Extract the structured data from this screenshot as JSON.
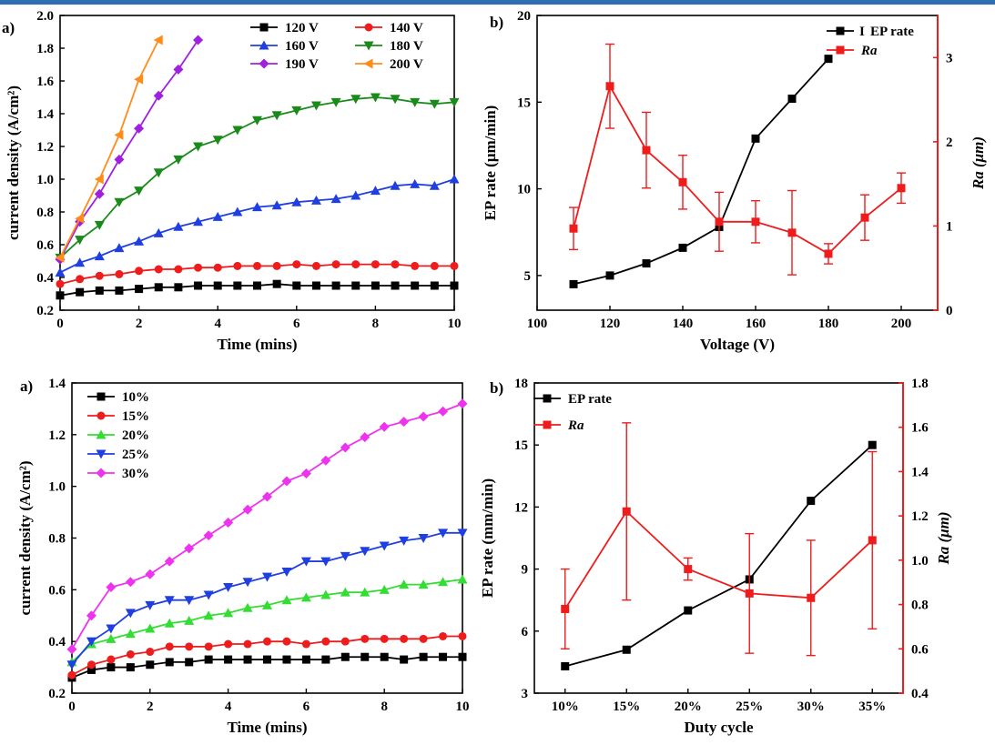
{
  "colors": {
    "black": "#000000",
    "red": "#ee1c1c",
    "blue": "#1f3fe0",
    "green": "#1a8a1a",
    "purple": "#a020e0",
    "orange": "#ff8c1a",
    "limegreen": "#33dd33",
    "magenta": "#ee33ee",
    "topbar": "#2d6fb5"
  },
  "chart_data": [
    {
      "id": "p1",
      "panel_label": "a)",
      "type": "line",
      "xlabel": "Time (mins)",
      "ylabel": "current density (A/cm²)",
      "xlim": [
        0,
        10
      ],
      "ylim": [
        0.2,
        2.0
      ],
      "xticks": [
        0,
        2,
        4,
        6,
        8,
        10
      ],
      "yticks": [
        0.2,
        0.4,
        0.6,
        0.8,
        1.0,
        1.2,
        1.4,
        1.6,
        1.8,
        2.0
      ],
      "ytick_labels": [
        "0.2",
        "0.4",
        "0.6",
        "0.8",
        "1.0",
        "1.2",
        "1.4",
        "1.6",
        "1.8",
        "2.0"
      ],
      "legend_position": "top-right",
      "series": [
        {
          "name": "120 V",
          "color": "#000000",
          "marker": "square",
          "x": [
            0,
            0.5,
            1,
            1.5,
            2,
            2.5,
            3,
            3.5,
            4,
            4.5,
            5,
            5.5,
            6,
            6.5,
            7,
            7.5,
            8,
            8.5,
            9,
            9.5,
            10
          ],
          "y": [
            0.29,
            0.31,
            0.32,
            0.32,
            0.33,
            0.34,
            0.34,
            0.35,
            0.35,
            0.35,
            0.35,
            0.36,
            0.35,
            0.35,
            0.35,
            0.35,
            0.35,
            0.35,
            0.35,
            0.35,
            0.35
          ]
        },
        {
          "name": "140 V",
          "color": "#ee1c1c",
          "marker": "circle",
          "x": [
            0,
            0.5,
            1,
            1.5,
            2,
            2.5,
            3,
            3.5,
            4,
            4.5,
            5,
            5.5,
            6,
            6.5,
            7,
            7.5,
            8,
            8.5,
            9,
            9.5,
            10
          ],
          "y": [
            0.36,
            0.39,
            0.41,
            0.42,
            0.44,
            0.45,
            0.45,
            0.46,
            0.46,
            0.47,
            0.47,
            0.47,
            0.48,
            0.47,
            0.48,
            0.48,
            0.48,
            0.48,
            0.47,
            0.47,
            0.47
          ]
        },
        {
          "name": "160 V",
          "color": "#1f3fe0",
          "marker": "triangle-up",
          "x": [
            0,
            0.5,
            1,
            1.5,
            2,
            2.5,
            3,
            3.5,
            4,
            4.5,
            5,
            5.5,
            6,
            6.5,
            7,
            7.5,
            8,
            8.5,
            9,
            9.5,
            10
          ],
          "y": [
            0.43,
            0.49,
            0.53,
            0.58,
            0.62,
            0.67,
            0.71,
            0.74,
            0.77,
            0.8,
            0.83,
            0.84,
            0.86,
            0.87,
            0.88,
            0.9,
            0.93,
            0.96,
            0.97,
            0.96,
            1.0
          ]
        },
        {
          "name": "180 V",
          "color": "#1a8a1a",
          "marker": "triangle-down",
          "x": [
            0,
            0.5,
            1,
            1.5,
            2,
            2.5,
            3,
            3.5,
            4,
            4.5,
            5,
            5.5,
            6,
            6.5,
            7,
            7.5,
            8,
            8.5,
            9,
            9.5,
            10
          ],
          "y": [
            0.52,
            0.63,
            0.72,
            0.86,
            0.93,
            1.04,
            1.12,
            1.2,
            1.24,
            1.3,
            1.36,
            1.39,
            1.42,
            1.45,
            1.47,
            1.49,
            1.5,
            1.49,
            1.47,
            1.46,
            1.47
          ]
        },
        {
          "name": "190 V",
          "color": "#a020e0",
          "marker": "diamond",
          "x": [
            0,
            0.5,
            1,
            1.5,
            2,
            2.5,
            3,
            3.5
          ],
          "y": [
            0.51,
            0.74,
            0.91,
            1.12,
            1.31,
            1.51,
            1.67,
            1.85
          ]
        },
        {
          "name": "200 V",
          "color": "#ff8c1a",
          "marker": "triangle-left",
          "x": [
            0,
            0.5,
            1,
            1.5,
            2,
            2.5
          ],
          "y": [
            0.52,
            0.76,
            1.0,
            1.27,
            1.61,
            1.85
          ]
        }
      ]
    },
    {
      "id": "p2",
      "panel_label": "b)",
      "type": "line",
      "xlabel": "Voltage (V)",
      "ylabel": "EP rate (μm/min)",
      "ylabel_right": "Ra (μm)",
      "xlim": [
        100,
        210
      ],
      "ylim": [
        3,
        20
      ],
      "ylim_right": [
        0,
        3.5
      ],
      "xticks": [
        100,
        120,
        140,
        160,
        180,
        200
      ],
      "yticks": [
        5,
        10,
        15,
        20
      ],
      "yticks_right": [
        0,
        1,
        2,
        3
      ],
      "legend_position": "top-right",
      "series": [
        {
          "name": "EP rate",
          "legend_prefix": "I",
          "color": "#000000",
          "marker": "square",
          "axis": "left",
          "x": [
            110,
            120,
            130,
            140,
            150,
            160,
            170,
            180
          ],
          "y": [
            4.5,
            5.0,
            5.7,
            6.6,
            7.8,
            12.9,
            15.2,
            17.5
          ]
        },
        {
          "name": "Ra",
          "color": "#ee1c1c",
          "marker": "square",
          "axis": "right",
          "x": [
            110,
            120,
            130,
            140,
            150,
            160,
            170,
            180,
            190,
            200
          ],
          "y": [
            0.97,
            2.66,
            1.9,
            1.52,
            1.05,
            1.05,
            0.92,
            0.67,
            1.1,
            1.45
          ],
          "err": [
            0.25,
            0.5,
            0.45,
            0.32,
            0.35,
            0.25,
            0.5,
            0.12,
            0.27,
            0.18
          ]
        }
      ]
    },
    {
      "id": "p3",
      "panel_label": "a)",
      "type": "line",
      "xlabel": "Time (mins)",
      "ylabel": "current density (A/cm²)",
      "xlim": [
        0,
        10
      ],
      "ylim": [
        0.2,
        1.4
      ],
      "xticks": [
        0,
        2,
        4,
        6,
        8,
        10
      ],
      "yticks": [
        0.2,
        0.4,
        0.6,
        0.8,
        1.0,
        1.2,
        1.4
      ],
      "ytick_labels": [
        "0.2",
        "0.4",
        "0.6",
        "0.8",
        "1.0",
        "1.2",
        "1.4"
      ],
      "legend_position": "top-left",
      "series": [
        {
          "name": "10%",
          "color": "#000000",
          "marker": "square",
          "x": [
            0,
            0.5,
            1,
            1.5,
            2,
            2.5,
            3,
            3.5,
            4,
            4.5,
            5,
            5.5,
            6,
            6.5,
            7,
            7.5,
            8,
            8.5,
            9,
            9.5,
            10
          ],
          "y": [
            0.26,
            0.29,
            0.3,
            0.3,
            0.31,
            0.32,
            0.32,
            0.33,
            0.33,
            0.33,
            0.33,
            0.33,
            0.33,
            0.33,
            0.34,
            0.34,
            0.34,
            0.33,
            0.34,
            0.34,
            0.34
          ]
        },
        {
          "name": "15%",
          "color": "#ee1c1c",
          "marker": "circle",
          "x": [
            0,
            0.5,
            1,
            1.5,
            2,
            2.5,
            3,
            3.5,
            4,
            4.5,
            5,
            5.5,
            6,
            6.5,
            7,
            7.5,
            8,
            8.5,
            9,
            9.5,
            10
          ],
          "y": [
            0.27,
            0.31,
            0.33,
            0.35,
            0.36,
            0.38,
            0.38,
            0.38,
            0.39,
            0.39,
            0.4,
            0.4,
            0.39,
            0.4,
            0.4,
            0.41,
            0.41,
            0.41,
            0.41,
            0.42,
            0.42
          ]
        },
        {
          "name": "20%",
          "color": "#33dd33",
          "marker": "triangle-up",
          "x": [
            0,
            0.5,
            1,
            1.5,
            2,
            2.5,
            3,
            3.5,
            4,
            4.5,
            5,
            5.5,
            6,
            6.5,
            7,
            7.5,
            8,
            8.5,
            9,
            9.5,
            10
          ],
          "y": [
            0.32,
            0.39,
            0.41,
            0.43,
            0.45,
            0.47,
            0.48,
            0.5,
            0.51,
            0.53,
            0.54,
            0.56,
            0.57,
            0.58,
            0.59,
            0.59,
            0.6,
            0.62,
            0.62,
            0.63,
            0.64
          ]
        },
        {
          "name": "25%",
          "color": "#1f3fe0",
          "marker": "triangle-down",
          "x": [
            0,
            0.5,
            1,
            1.5,
            2,
            2.5,
            3,
            3.5,
            4,
            4.5,
            5,
            5.5,
            6,
            6.5,
            7,
            7.5,
            8,
            8.5,
            9,
            9.5,
            10
          ],
          "y": [
            0.31,
            0.4,
            0.45,
            0.51,
            0.54,
            0.56,
            0.56,
            0.58,
            0.61,
            0.63,
            0.65,
            0.67,
            0.71,
            0.71,
            0.73,
            0.75,
            0.77,
            0.79,
            0.8,
            0.82,
            0.82
          ]
        },
        {
          "name": "30%",
          "color": "#ee33ee",
          "marker": "diamond",
          "x": [
            0,
            0.5,
            1,
            1.5,
            2,
            2.5,
            3,
            3.5,
            4,
            4.5,
            5,
            5.5,
            6,
            6.5,
            7,
            7.5,
            8,
            8.5,
            9,
            9.5,
            10
          ],
          "y": [
            0.37,
            0.5,
            0.61,
            0.63,
            0.66,
            0.71,
            0.76,
            0.81,
            0.86,
            0.91,
            0.96,
            1.02,
            1.05,
            1.1,
            1.15,
            1.19,
            1.23,
            1.25,
            1.27,
            1.29,
            1.32
          ]
        }
      ]
    },
    {
      "id": "p4",
      "panel_label": "b)",
      "type": "line",
      "xlabel": "Duty cycle",
      "ylabel": "EP rate (mm/min)",
      "ylabel_right": "Ra (μm)",
      "categories": [
        "10%",
        "15%",
        "20%",
        "25%",
        "30%",
        "35%"
      ],
      "ylim": [
        3,
        18
      ],
      "ylim_right": [
        0.4,
        1.8
      ],
      "yticks": [
        3,
        6,
        9,
        12,
        15,
        18
      ],
      "yticks_right": [
        0.4,
        0.6,
        0.8,
        1.0,
        1.2,
        1.4,
        1.6,
        1.8
      ],
      "ytick_right_labels": [
        "0.4",
        "0.6",
        "0.8",
        "1.0",
        "1.2",
        "1.4",
        "1.6",
        "1.8"
      ],
      "legend_position": "top-left",
      "series": [
        {
          "name": "EP rate",
          "color": "#000000",
          "marker": "square",
          "axis": "left",
          "values": [
            4.3,
            5.1,
            7.0,
            8.5,
            12.3,
            15.0
          ]
        },
        {
          "name": "Ra",
          "color": "#ee1c1c",
          "marker": "square",
          "axis": "right",
          "values": [
            0.78,
            1.22,
            0.96,
            0.85,
            0.83,
            1.09
          ],
          "err": [
            0.18,
            0.4,
            0.05,
            0.27,
            0.26,
            0.4
          ]
        }
      ]
    }
  ]
}
